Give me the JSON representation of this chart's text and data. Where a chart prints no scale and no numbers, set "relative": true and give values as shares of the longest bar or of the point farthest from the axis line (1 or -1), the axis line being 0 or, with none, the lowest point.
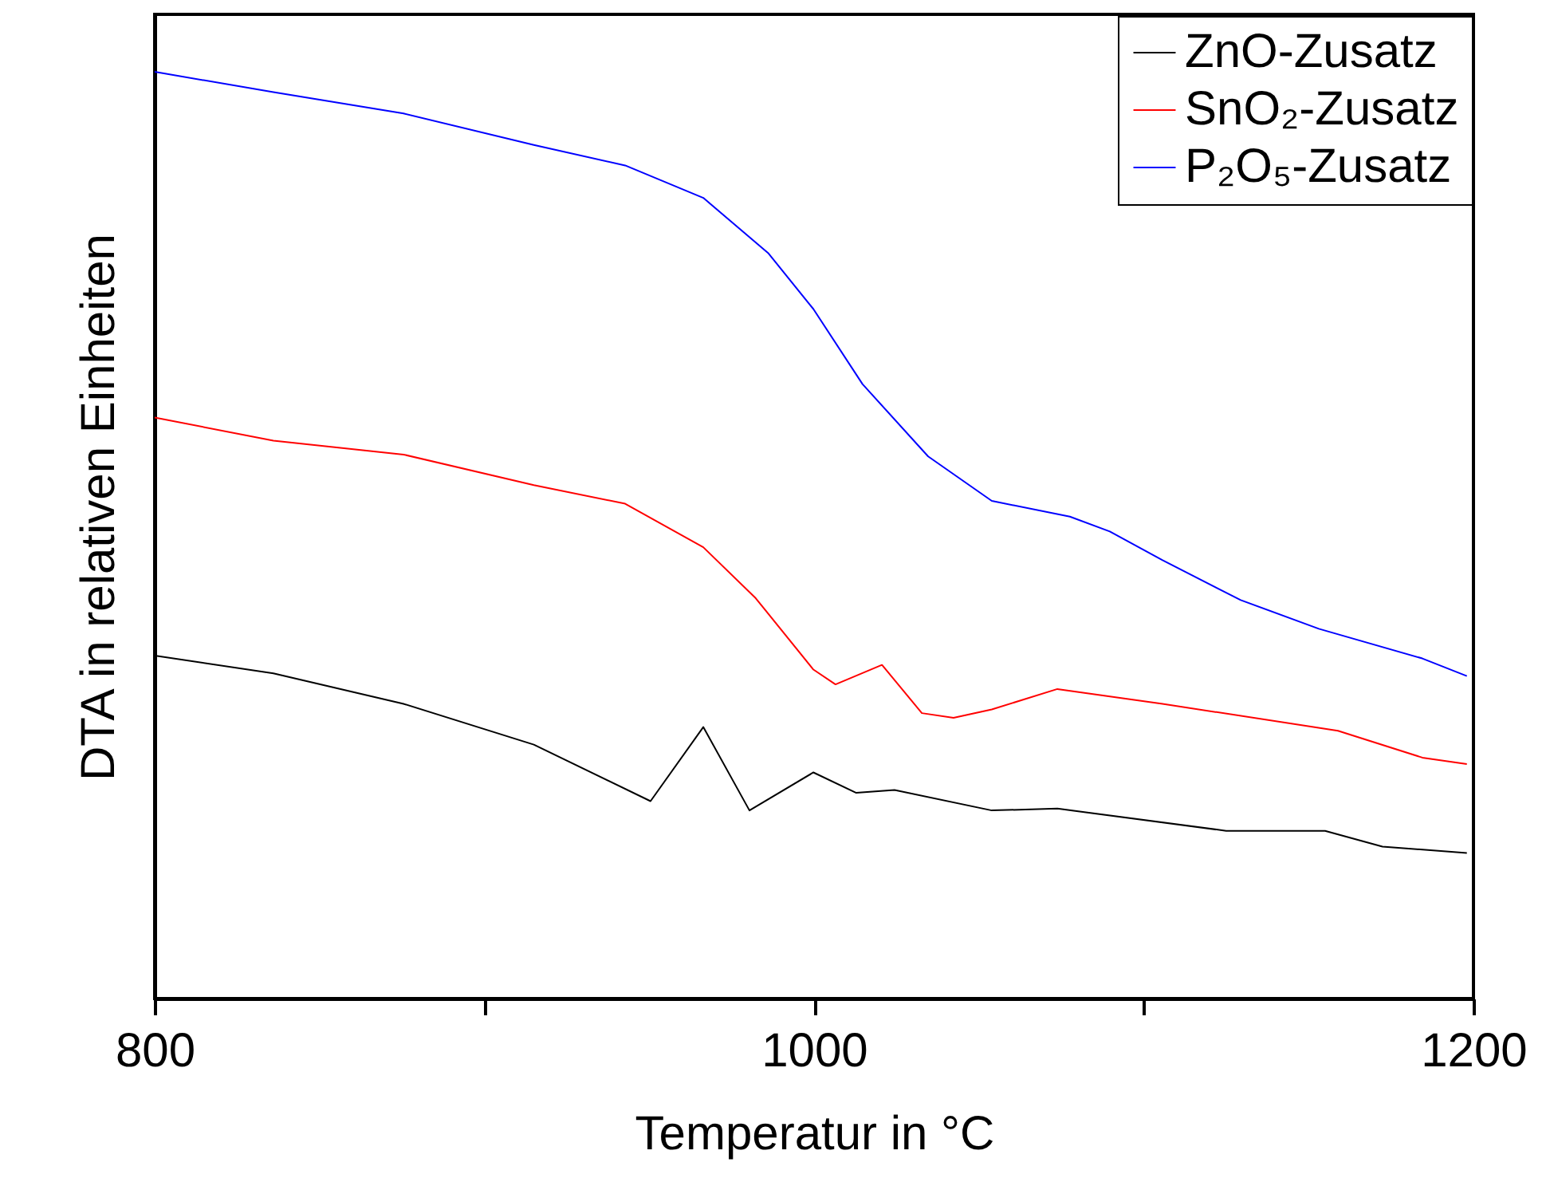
{
  "chart_data": {
    "type": "line",
    "xlabel": "Temperatur in °C",
    "ylabel": "DTA in relativen Einheiten",
    "relative": true,
    "xlim": [
      800,
      1200
    ],
    "xticks": [
      800,
      {
        "value": 900,
        "label": null
      },
      1000,
      {
        "value": 1100,
        "label": null
      },
      1200
    ],
    "legend": "top right",
    "marker": "none",
    "line_style": "solid",
    "grid": false,
    "series": [
      {
        "name": "ZnO-Zusatz",
        "color": "#000000",
        "x": [
          800,
          836,
          875.5,
          915,
          950.4,
          966.4,
          980.4,
          999.8,
          1012.8,
          1024.4,
          1053.9,
          1073.8,
          1125,
          1155,
          1172.4,
          1198
        ],
        "values": [
          0.37,
          0.351,
          0.318,
          0.274,
          0.213,
          0.293,
          0.203,
          0.244,
          0.222,
          0.225,
          0.203,
          0.205,
          0.181,
          0.181,
          0.164,
          0.157
        ]
      },
      {
        "name": "SnO₂-Zusatz",
        "color": "#ff0000",
        "x": [
          800,
          836,
          875.5,
          915,
          942.7,
          966.4,
          982.3,
          999.8,
          1006.5,
          1020.6,
          1032.7,
          1042.3,
          1053.9,
          1073.8,
          1105.7,
          1158.9,
          1184.5,
          1198
        ],
        "values": [
          0.627,
          0.602,
          0.587,
          0.554,
          0.534,
          0.487,
          0.432,
          0.355,
          0.339,
          0.36,
          0.308,
          0.303,
          0.312,
          0.334,
          0.318,
          0.289,
          0.26,
          0.253
        ]
      },
      {
        "name": "P₂O₅-Zusatz",
        "color": "#0000ff",
        "x": [
          800,
          836,
          875.5,
          915,
          942.7,
          966.4,
          986.2,
          999.8,
          1014.7,
          1034.6,
          1053.9,
          1077.6,
          1089.7,
          1105.7,
          1129.4,
          1153.1,
          1184.5,
          1198
        ],
        "values": [
          1.0,
          0.978,
          0.955,
          0.921,
          0.899,
          0.864,
          0.804,
          0.744,
          0.663,
          0.585,
          0.537,
          0.52,
          0.504,
          0.473,
          0.43,
          0.399,
          0.367,
          0.348
        ]
      }
    ]
  }
}
